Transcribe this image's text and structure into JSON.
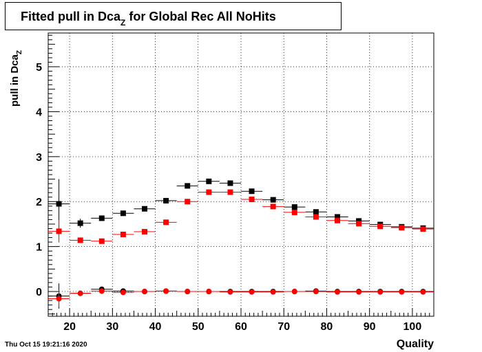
{
  "title": {
    "main": "Fitted pull in Dca",
    "sub": "Z",
    "rest": " for Global Rec All NoHits"
  },
  "ylabel": {
    "main": "pull in Dca",
    "sub": "Z"
  },
  "xlabel": "Quality",
  "timestamp": "Thu Oct 15 19:21:16 2020",
  "chart_data": {
    "type": "scatter",
    "title": "Fitted pull in Dca_Z for Global Rec All NoHits",
    "xlabel": "Quality",
    "ylabel": "pull in Dca_Z",
    "xlim": [
      15,
      105
    ],
    "ylim": [
      -0.55,
      5.75
    ],
    "xticks": [
      20,
      30,
      40,
      50,
      60,
      70,
      80,
      90,
      100
    ],
    "yticks": [
      0,
      1,
      2,
      3,
      4,
      5
    ],
    "grid": true,
    "x": [
      17.5,
      22.5,
      27.5,
      32.5,
      37.5,
      42.5,
      47.5,
      52.5,
      57.5,
      62.5,
      67.5,
      72.5,
      77.5,
      82.5,
      87.5,
      92.5,
      97.5,
      102.5
    ],
    "series": [
      {
        "color": "#000000",
        "marker": "square",
        "values": [
          1.95,
          1.52,
          1.63,
          1.74,
          1.84,
          2.02,
          2.35,
          2.45,
          2.41,
          2.23,
          2.04,
          1.88,
          1.77,
          1.66,
          1.57,
          1.49,
          1.44,
          1.41
        ],
        "errors": [
          0.55,
          0.1,
          0.04,
          0.03,
          0.03,
          0.03,
          0.03,
          0.03,
          0.03,
          0.02,
          0.02,
          0.02,
          0.02,
          0.02,
          0.02,
          0.02,
          0.02,
          0.02
        ]
      },
      {
        "color": "#ff0000",
        "marker": "square",
        "values": [
          1.34,
          1.14,
          1.12,
          1.27,
          1.33,
          1.54,
          2.0,
          2.21,
          2.21,
          2.05,
          1.89,
          1.76,
          1.66,
          1.58,
          1.51,
          1.45,
          1.42,
          1.39
        ],
        "errors": [
          0.25,
          0.06,
          0.03,
          0.02,
          0.02,
          0.02,
          0.02,
          0.02,
          0.02,
          0.02,
          0.02,
          0.02,
          0.02,
          0.02,
          0.02,
          0.02,
          0.02,
          0.02
        ]
      },
      {
        "color": "#000000",
        "marker": "circle",
        "values": [
          -0.1,
          -0.04,
          0.05,
          0.01,
          0.0,
          0.01,
          0.0,
          0.0,
          0.0,
          0.0,
          0.0,
          0.0,
          0.01,
          0.0,
          0.0,
          0.0,
          0.0,
          0.0
        ],
        "errors": [
          0.28,
          0.05,
          0.03,
          0.02,
          0.02,
          0.02,
          0.02,
          0.02,
          0.02,
          0.02,
          0.02,
          0.02,
          0.02,
          0.02,
          0.02,
          0.02,
          0.02,
          0.02
        ]
      },
      {
        "color": "#ff0000",
        "marker": "circle",
        "values": [
          -0.16,
          -0.04,
          0.01,
          -0.02,
          0.0,
          0.01,
          0.0,
          0.0,
          -0.01,
          -0.01,
          -0.01,
          0.0,
          0.0,
          -0.01,
          -0.01,
          -0.01,
          -0.01,
          -0.01
        ],
        "errors": [
          0.18,
          0.04,
          0.02,
          0.02,
          0.02,
          0.02,
          0.02,
          0.02,
          0.02,
          0.02,
          0.02,
          0.02,
          0.02,
          0.02,
          0.02,
          0.02,
          0.02,
          0.02
        ]
      }
    ]
  }
}
